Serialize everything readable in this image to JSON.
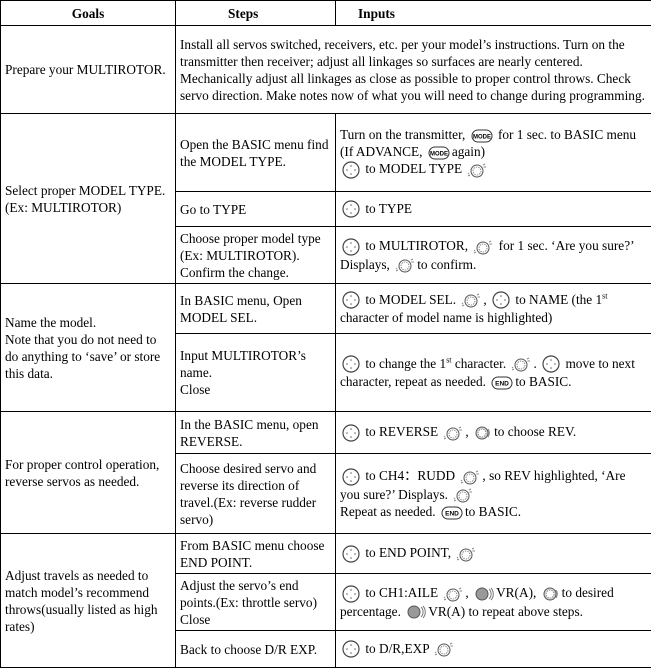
{
  "headers": {
    "goals": "Goals",
    "steps": "Steps",
    "inputs": "Inputs"
  },
  "rows": [
    {
      "goal": "Prepare your MULTIROTOR.",
      "steps": [
        {
          "step": "",
          "input": [
            {
              "t": "Install all servos switched, receivers, etc. per your model’s instructions. Turn on the transmitter then receiver; adjust all linkages so surfaces are nearly centered. Mechanically adjust all linkages as close as possible to proper control throws. Check servo direction. Make notes now of what you will need to change during programming."
            }
          ]
        }
      ]
    },
    {
      "goal": "Select proper MODEL TYPE.\n(Ex: MULTIROTOR)",
      "steps": [
        {
          "step": "Open the BASIC menu find the MODEL TYPE.",
          "input": [
            {
              "t": "Turn on the transmitter, "
            },
            {
              "i": "mode-button"
            },
            {
              "t": " for 1 sec. to BASIC menu (If ADVANCE, "
            },
            {
              "i": "mode-button"
            },
            {
              "t": "again)"
            },
            {
              "br": 1
            },
            {
              "i": "dpad"
            },
            {
              "t": " to MODEL TYPE "
            },
            {
              "i": "push-dial"
            }
          ]
        },
        {
          "step": "Go to TYPE",
          "input": [
            {
              "i": "dpad"
            },
            {
              "t": " to TYPE"
            }
          ]
        },
        {
          "step": "Choose proper model type (Ex: MULTIROTOR). Confirm the change.",
          "input": [
            {
              "i": "dpad"
            },
            {
              "t": " to MULTIROTOR, "
            },
            {
              "i": "push-dial"
            },
            {
              "t": " for 1 sec. ‘Are you sure?’ Displays, "
            },
            {
              "i": "push-dial"
            },
            {
              "t": "to confirm."
            }
          ]
        }
      ]
    },
    {
      "goal": "Name the model.\nNote that you do not need to do anything to ‘save’ or store this data.",
      "steps": [
        {
          "step": "In BASIC menu, Open MODEL SEL.",
          "input": [
            {
              "i": "dpad"
            },
            {
              "t": " to MODEL SEL. "
            },
            {
              "i": "push-dial"
            },
            {
              "t": ",  "
            },
            {
              "i": "dpad"
            },
            {
              "t": " to NAME (the 1"
            },
            {
              "sup": "st"
            },
            {
              "t": " character of model name is highlighted)"
            }
          ]
        },
        {
          "step": "Input MULTIROTOR’s name.\nClose",
          "input": [
            {
              "i": "dpad"
            },
            {
              "t": "  to change the 1"
            },
            {
              "sup": "st"
            },
            {
              "t": " character. "
            },
            {
              "i": "push-dial"
            },
            {
              "t": ".  "
            },
            {
              "i": "dpad"
            },
            {
              "t": " move to next character, repeat as needed. "
            },
            {
              "i": "end-button"
            },
            {
              "t": "to BASIC."
            }
          ]
        }
      ]
    },
    {
      "goal": "For proper control operation, reverse servos as needed.",
      "steps": [
        {
          "step": "In the BASIC menu, open REVERSE.",
          "input": [
            {
              "i": "dpad"
            },
            {
              "t": " to REVERSE "
            },
            {
              "i": "push-dial"
            },
            {
              "t": ",  "
            },
            {
              "i": "rotary-dial"
            },
            {
              "t": "to choose REV."
            }
          ]
        },
        {
          "step": "Choose desired servo and reverse its direction of travel.(Ex: reverse rudder servo)",
          "input": [
            {
              "i": "dpad"
            },
            {
              "t": " to CH4：RUDD "
            },
            {
              "i": "push-dial"
            },
            {
              "t": ", so REV highlighted, ‘Are you sure?’ Displays. "
            },
            {
              "i": "push-dial"
            },
            {
              "br": 1
            },
            {
              "t": "Repeat as needed. "
            },
            {
              "i": "end-button"
            },
            {
              "t": "to BASIC."
            }
          ]
        }
      ]
    },
    {
      "goal": "Adjust travels as needed to match model’s recommend throws(usually listed as high rates)",
      "steps": [
        {
          "step": "From BASIC menu choose END POINT.",
          "input": [
            {
              "i": "dpad"
            },
            {
              "t": " to END POINT, "
            },
            {
              "i": "push-dial"
            }
          ]
        },
        {
          "step": "Adjust the servo’s end points.(Ex: throttle servo)\nClose",
          "input": [
            {
              "i": "dpad"
            },
            {
              "t": " to CH1:AILE  "
            },
            {
              "i": "push-dial"
            },
            {
              "t": ",  "
            },
            {
              "i": "vr-knob"
            },
            {
              "t": "VR(A), "
            },
            {
              "i": "rotary-dial"
            },
            {
              "t": "to desired percentage. "
            },
            {
              "i": "vr-knob"
            },
            {
              "t": "VR(A) to repeat above steps."
            }
          ]
        },
        {
          "step": "Back to choose D/R EXP.",
          "input": [
            {
              "i": "dpad"
            },
            {
              "t": " to D/R,EXP "
            },
            {
              "i": "push-dial"
            }
          ]
        }
      ]
    }
  ]
}
